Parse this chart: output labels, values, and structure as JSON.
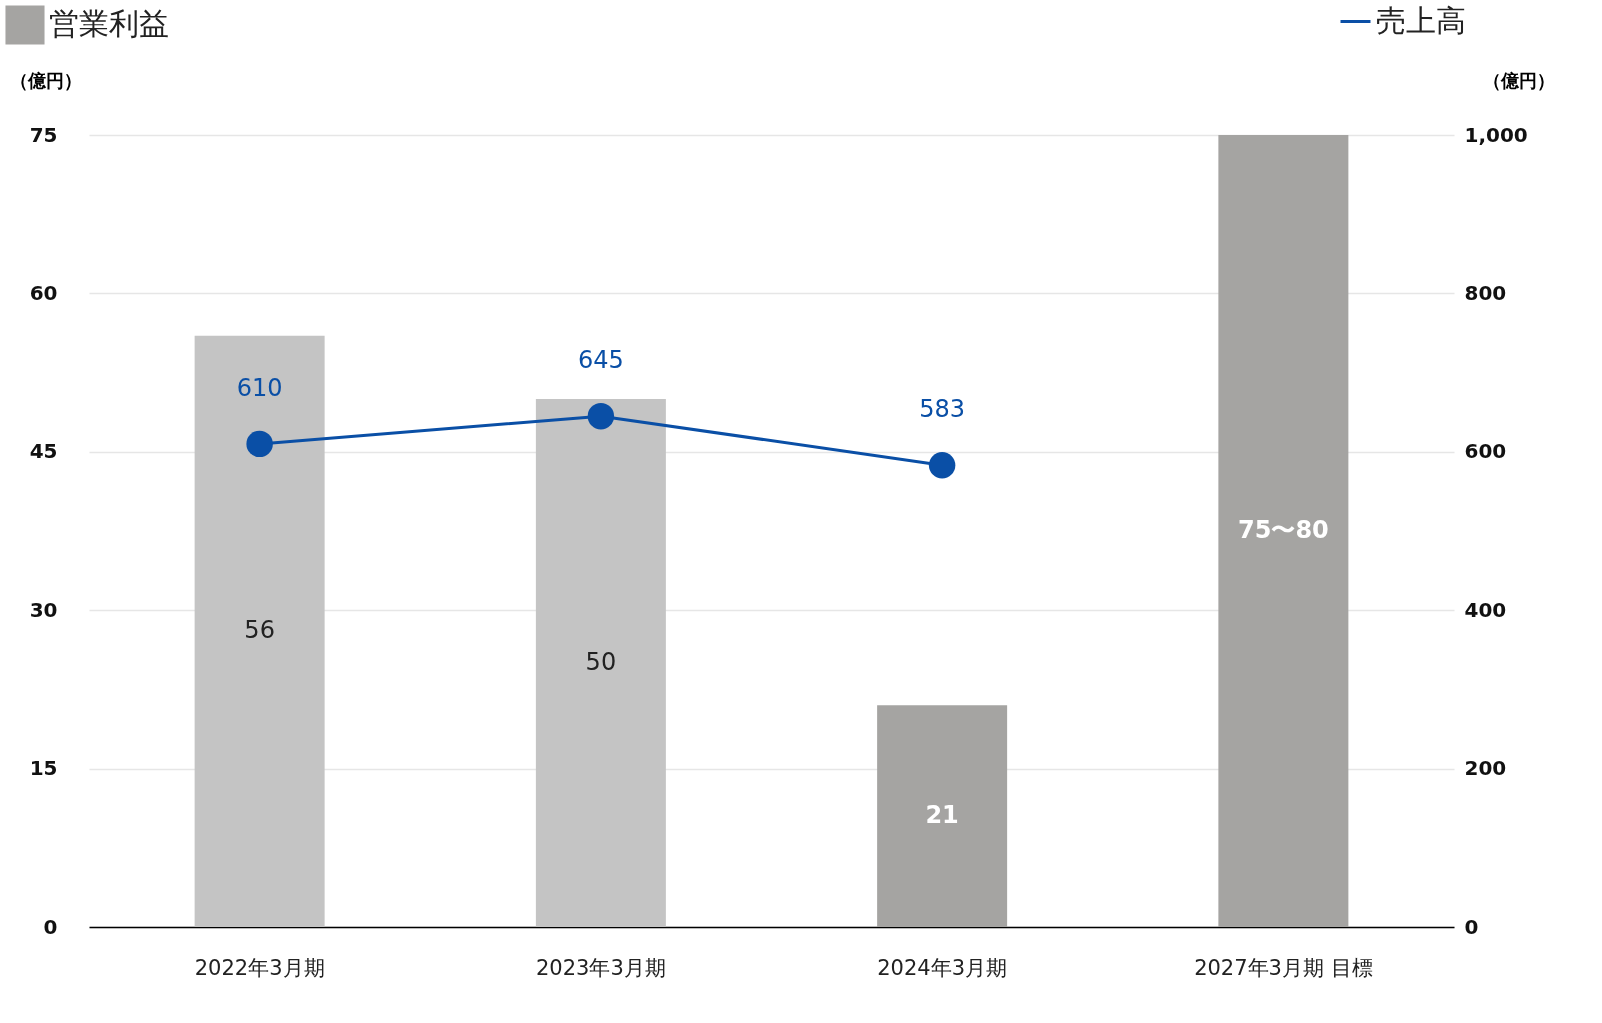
{
  "chart_data": {
    "type": "bar",
    "categories": [
      "2022年3月期",
      "2023年3月期",
      "2024年3月期",
      "2027年3月期 目標"
    ],
    "series": [
      {
        "name": "営業利益",
        "colors": [
          "#c4c4c4",
          "#c4c4c4",
          "#a5a4a2",
          "#a5a4a2"
        ],
        "values": [
          56,
          50,
          21,
          75
        ],
        "value_labels": [
          "56",
          "50",
          "21",
          "75〜80"
        ]
      },
      {
        "name": "売上高",
        "type": "line",
        "axis": "y2",
        "color": "#0a4fa6",
        "values": [
          610,
          645,
          583,
          null
        ],
        "marker": "circle"
      }
    ],
    "ylabel": "（億円）",
    "y2label": "（億円）",
    "ylim": [
      0,
      75
    ],
    "yticks": [
      0,
      15,
      30,
      45,
      60,
      75
    ],
    "y2lim": [
      0,
      1000
    ],
    "y2ticks": [
      0,
      200,
      400,
      600,
      800,
      {
        "value": 1000,
        "label": "1,000"
      }
    ],
    "grid": "y",
    "data_labels": true,
    "legend": "top"
  }
}
